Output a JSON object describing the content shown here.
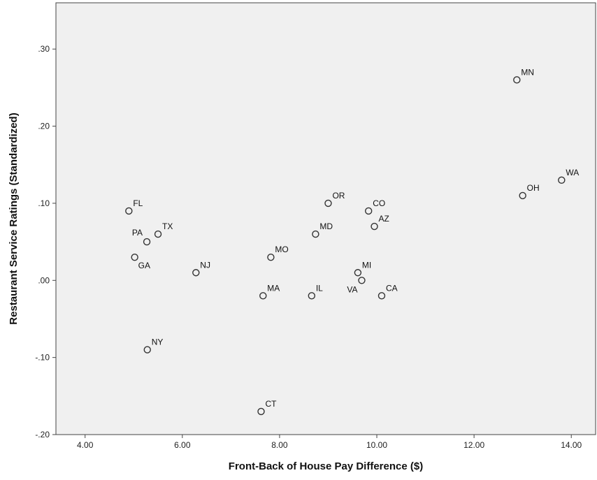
{
  "chart_data": {
    "type": "scatter",
    "xlabel": "Front-Back of House Pay Difference ($)",
    "ylabel": "Restaurant Service Ratings (Standardized)",
    "xlim": [
      3.4,
      14.5
    ],
    "ylim": [
      -0.2,
      0.36
    ],
    "x_ticks": [
      4,
      6,
      8,
      10,
      12,
      14
    ],
    "x_tick_labels": [
      "4.00",
      "6.00",
      "8.00",
      "10.00",
      "12.00",
      "14.00"
    ],
    "y_ticks": [
      -0.2,
      -0.1,
      0.0,
      0.1,
      0.2,
      0.3
    ],
    "y_tick_labels": [
      "-.20",
      "-.10",
      ".00",
      ".10",
      ".20",
      ".30"
    ],
    "grid": false,
    "colors": {
      "plot_bg": "#f0f0f0",
      "marker_stroke": "#333333",
      "marker_fill": "#f0f0f0"
    },
    "points": [
      {
        "label": "FL",
        "x": 4.9,
        "y": 0.09,
        "label_pos": "ne"
      },
      {
        "label": "PA",
        "x": 5.27,
        "y": 0.05,
        "label_pos": "nw"
      },
      {
        "label": "TX",
        "x": 5.5,
        "y": 0.06,
        "label_pos": "ne"
      },
      {
        "label": "GA",
        "x": 5.02,
        "y": 0.03,
        "label_pos": "se"
      },
      {
        "label": "NJ",
        "x": 6.28,
        "y": 0.01,
        "label_pos": "ne"
      },
      {
        "label": "NY",
        "x": 5.28,
        "y": -0.09,
        "label_pos": "ne"
      },
      {
        "label": "MO",
        "x": 7.82,
        "y": 0.03,
        "label_pos": "ne"
      },
      {
        "label": "MA",
        "x": 7.66,
        "y": -0.02,
        "label_pos": "ne"
      },
      {
        "label": "CT",
        "x": 7.62,
        "y": -0.17,
        "label_pos": "ne"
      },
      {
        "label": "MD",
        "x": 8.74,
        "y": 0.06,
        "label_pos": "ne"
      },
      {
        "label": "IL",
        "x": 8.66,
        "y": -0.02,
        "label_pos": "ne"
      },
      {
        "label": "OR",
        "x": 9.0,
        "y": 0.1,
        "label_pos": "ne"
      },
      {
        "label": "CO",
        "x": 9.83,
        "y": 0.09,
        "label_pos": "ne"
      },
      {
        "label": "AZ",
        "x": 9.95,
        "y": 0.07,
        "label_pos": "ne"
      },
      {
        "label": "MI",
        "x": 9.61,
        "y": 0.01,
        "label_pos": "ne"
      },
      {
        "label": "VA",
        "x": 9.69,
        "y": 0.0,
        "label_pos": "sw"
      },
      {
        "label": "CA",
        "x": 10.1,
        "y": -0.02,
        "label_pos": "ne"
      },
      {
        "label": "MN",
        "x": 12.88,
        "y": 0.26,
        "label_pos": "ne"
      },
      {
        "label": "OH",
        "x": 13.0,
        "y": 0.11,
        "label_pos": "ne"
      },
      {
        "label": "WA",
        "x": 13.8,
        "y": 0.13,
        "label_pos": "ne"
      }
    ]
  }
}
